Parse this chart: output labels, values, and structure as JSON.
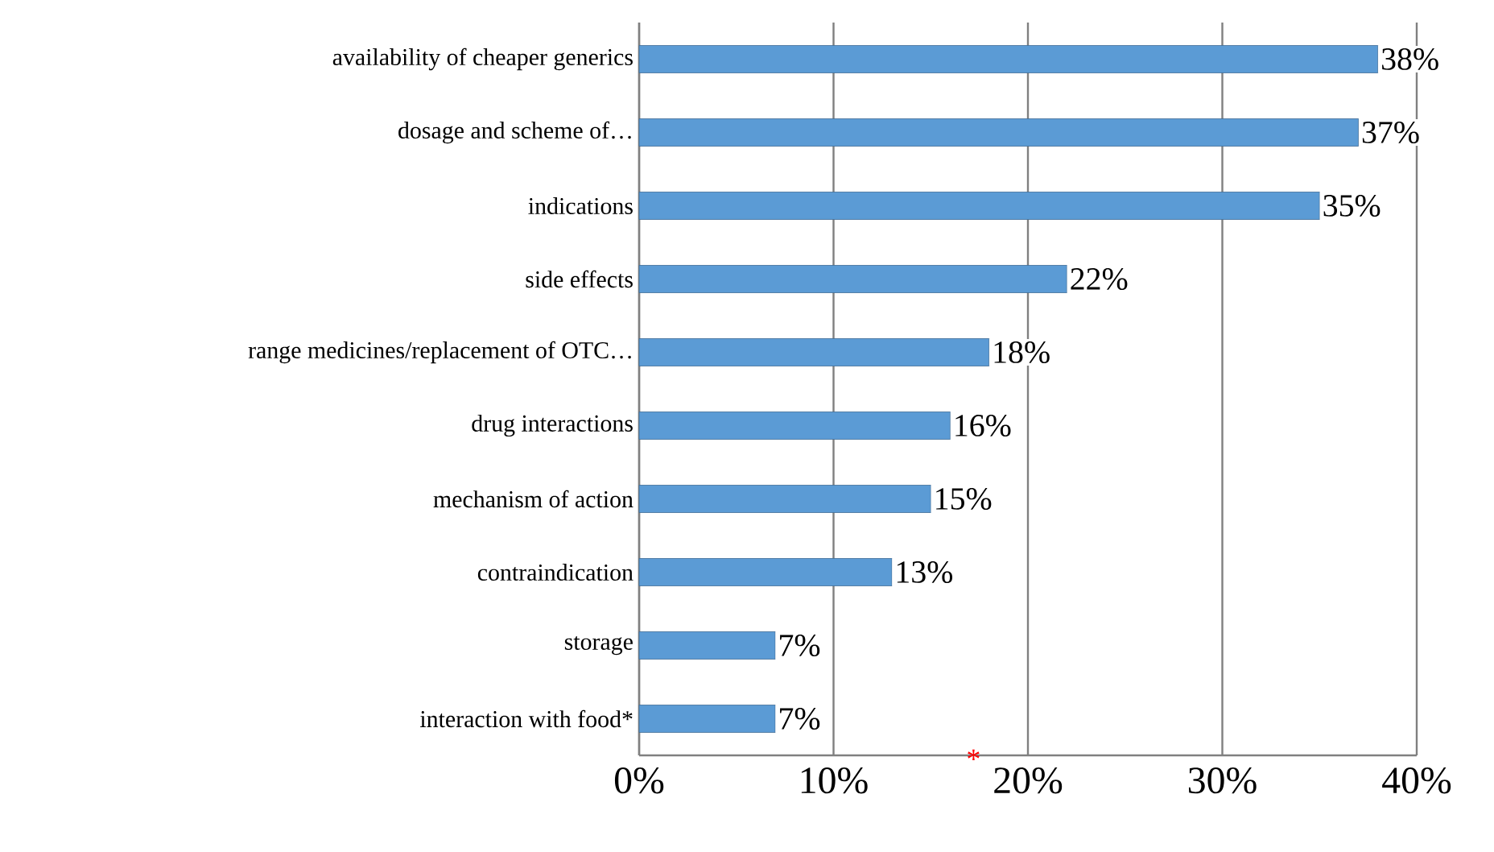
{
  "chart_data": {
    "type": "bar",
    "orientation": "horizontal",
    "color": "#5b9bd5",
    "categories": [
      "availability of cheaper generics",
      "dosage and scheme of…",
      "indications",
      "side effects",
      "range medicines/replacement of OTC…",
      "drug interactions",
      "mechanism of action",
      "contraindication",
      "storage",
      "interaction with food*"
    ],
    "values": [
      38,
      37,
      35,
      22,
      18,
      16,
      15,
      13,
      7,
      7
    ],
    "value_labels": [
      "38%",
      "37%",
      "35%",
      "22%",
      "18%",
      "16%",
      "15%",
      "13%",
      "7%",
      "7%"
    ],
    "xlim": [
      0,
      40
    ],
    "xticks": [
      {
        "value": 0,
        "label": "0%"
      },
      {
        "value": 10,
        "label": "10%"
      },
      {
        "value": 20,
        "label": "20%"
      },
      {
        "value": 30,
        "label": "30%"
      },
      {
        "value": 40,
        "label": "40%"
      }
    ],
    "grid": "x",
    "annotations": [
      "*"
    ]
  }
}
